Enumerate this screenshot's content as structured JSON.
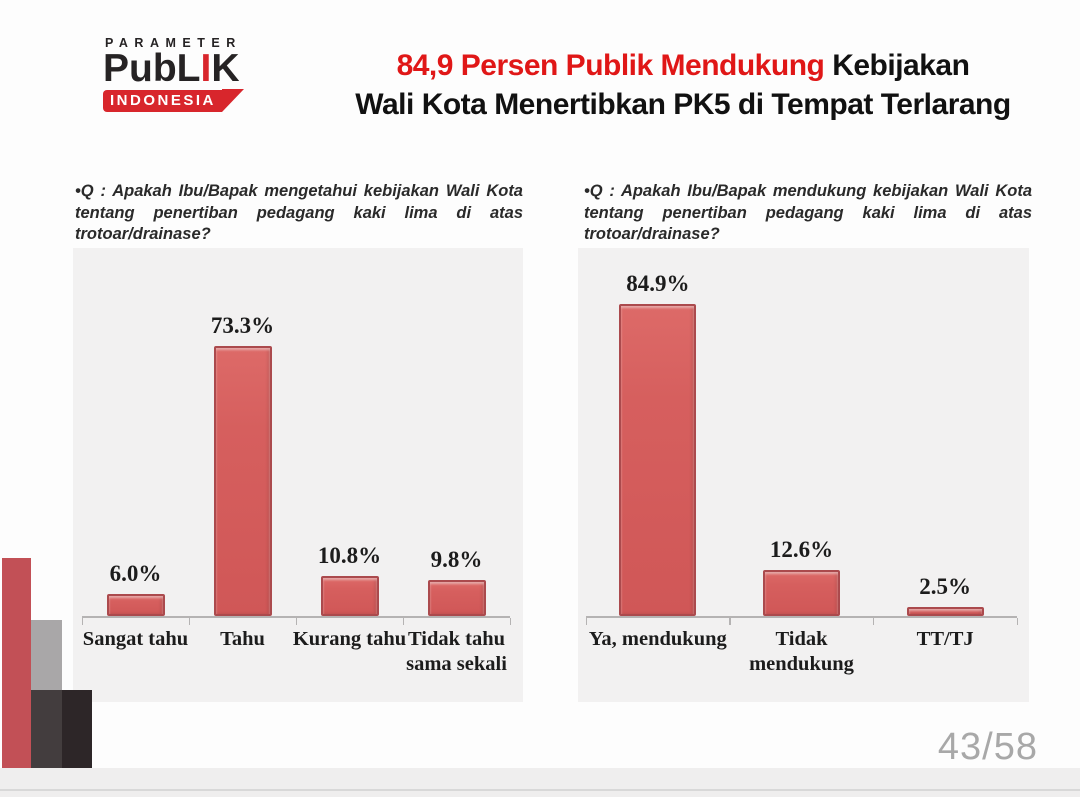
{
  "logo": {
    "top_text": "PARAMETER",
    "main_pre": "PubL",
    "main_red": "I",
    "main_post": "K",
    "banner_text": "INDONESIA",
    "brand_red": "#d8262c"
  },
  "title": {
    "red_part": "84,9 Persen Publik Mendukung",
    "black_part": " Kebijakan",
    "line2": "Wali Kota Menertibkan PK5 di Tempat Terlarang",
    "accent_color": "#e01717"
  },
  "chart_data": [
    {
      "type": "bar",
      "title": "•Q : Apakah Ibu/Bapak mengetahui kebijakan Wali Kota tentang penertiban pedagang kaki lima di atas trotoar/drainase?",
      "categories": [
        "Sangat tahu",
        "Tahu",
        "Kurang tahu",
        "Tidak tahu sama sekali"
      ],
      "values": [
        6.0,
        73.3,
        10.8,
        9.8
      ],
      "value_labels": [
        "6.0%",
        "73.3%",
        "10.8%",
        "9.8%"
      ],
      "bar_color": "#d65f5e",
      "panel_bg": "#f2f1f1",
      "ylim": [
        0,
        100
      ],
      "grid": false,
      "legend": "none"
    },
    {
      "type": "bar",
      "title": "•Q : Apakah Ibu/Bapak mendukung kebijakan Wali Kota tentang penertiban pedagang kaki lima di atas trotoar/drainase?",
      "categories": [
        "Ya, mendukung",
        "Tidak mendukung",
        "TT/TJ"
      ],
      "values": [
        84.9,
        12.6,
        2.5
      ],
      "value_labels": [
        "84.9%",
        "12.6%",
        "2.5%"
      ],
      "bar_color": "#d65f5e",
      "panel_bg": "#f2f1f1",
      "ylim": [
        0,
        100
      ],
      "grid": false,
      "legend": "none"
    }
  ],
  "footer": {
    "page_indicator": "43/58"
  }
}
